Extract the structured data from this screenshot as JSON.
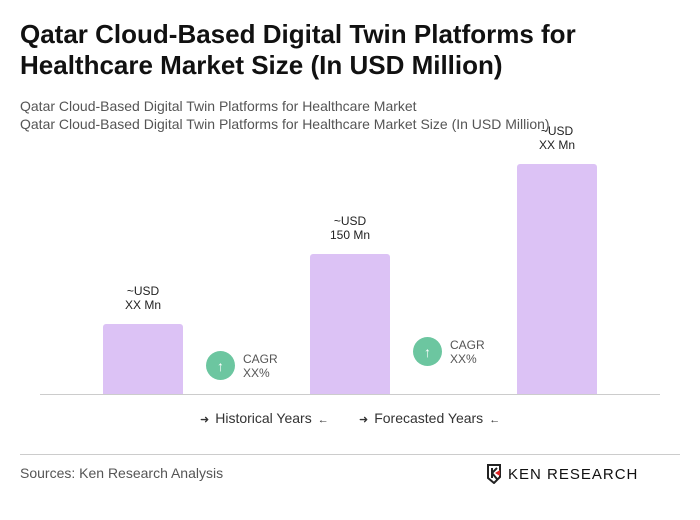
{
  "title": "Qatar Cloud-Based Digital Twin Platforms for Healthcare Market Size (In USD Million)",
  "subtitle_1": "Qatar Cloud-Based Digital Twin Platforms for Healthcare Market",
  "subtitle_2": "Qatar Cloud-Based Digital Twin Platforms for Healthcare Market Size (In USD Million)",
  "chart_data": {
    "type": "bar",
    "categories": [
      "",
      "",
      ""
    ],
    "values": [
      75,
      150,
      246
    ],
    "data_labels": [
      {
        "line1": "~USD",
        "line2": "XX Mn"
      },
      {
        "line1": "~USD",
        "line2": "150 Mn"
      },
      {
        "line1": "~USD",
        "line2": "XX Mn"
      }
    ],
    "bar_color": "#dcc2f5",
    "cagr": [
      {
        "label": "CAGR",
        "value": "XX%",
        "icon": "arrow-up-icon"
      },
      {
        "label": "CAGR",
        "value": "XX%",
        "icon": "arrow-up-icon"
      }
    ],
    "cagr_color": "#6cc6a0",
    "legend": [
      "Historical Years",
      "Forecasted Years"
    ],
    "grid": false
  },
  "footer": {
    "sources": "Sources: Ken Research Analysis",
    "logo": "KEN RESEARCH"
  }
}
